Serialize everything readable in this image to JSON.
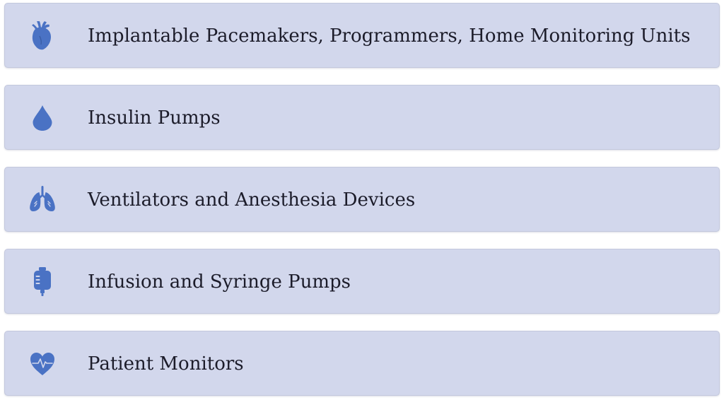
{
  "accent_color": "#4a72c4",
  "devices": [
    {
      "icon": "anatomical-heart-icon",
      "label": "Implantable Pacemakers, Programmers, Home Monitoring Units"
    },
    {
      "icon": "drop-icon",
      "label": "Insulin Pumps"
    },
    {
      "icon": "lungs-icon",
      "label": "Ventilators and Anesthesia Devices"
    },
    {
      "icon": "iv-bag-icon",
      "label": "Infusion and Syringe Pumps"
    },
    {
      "icon": "heart-pulse-icon",
      "label": "Patient Monitors"
    }
  ]
}
